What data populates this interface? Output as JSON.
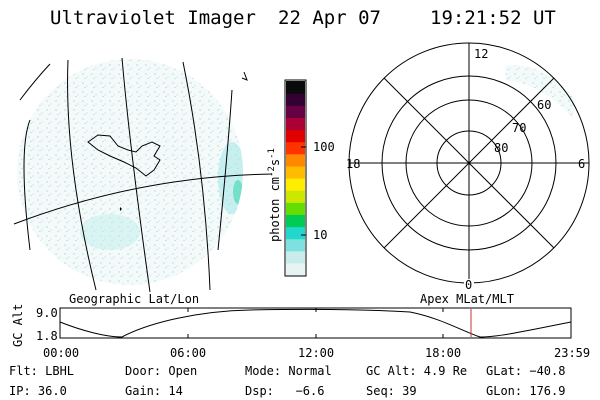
{
  "header": {
    "title": "Ultraviolet Imager",
    "date": "22 Apr 07",
    "time": "19:21:52 UT"
  },
  "colorbar": {
    "label_main": "photon cm",
    "label_exp1": "-2",
    "label_mid": "s",
    "label_exp2": "-1",
    "ticks": [
      "100",
      "10"
    ],
    "colors": [
      "#e8f4f4",
      "#c8ecec",
      "#7fe0e0",
      "#22d8cc",
      "#00cc55",
      "#66dd00",
      "#cce800",
      "#ffee00",
      "#ffbb00",
      "#ff8800",
      "#ff3300",
      "#e00000",
      "#aa0033",
      "#660044",
      "#330033",
      "#0a0a0a"
    ]
  },
  "polar": {
    "top_label": "12",
    "left_label": "18",
    "right_label": "6",
    "bottom_label": "0",
    "lat_labels": [
      "60",
      "70",
      "80"
    ]
  },
  "strip": {
    "left_title": "Geographic Lat/Lon",
    "right_title": "Apex MLat/MLT",
    "ylabel": "GC Alt",
    "y_ticks": [
      "9.0",
      "1.8"
    ],
    "x_ticks": [
      "00:00",
      "06:00",
      "12:00",
      "18:00",
      "23:59"
    ],
    "marker_color": "#cc3333"
  },
  "info": {
    "row1": {
      "filter": "Flt: LBHL",
      "door": "Door: Open",
      "mode": "Mode: Normal",
      "gc_alt": "GC Alt: 4.9 Re",
      "glat": "GLat: −40.8"
    },
    "row2": {
      "ip": "IP: 36.0",
      "gain": "Gain: 14",
      "dsp": "Dsp:   −6.6",
      "seq": "Seq: 39",
      "glon": "GLon: 176.9"
    }
  }
}
